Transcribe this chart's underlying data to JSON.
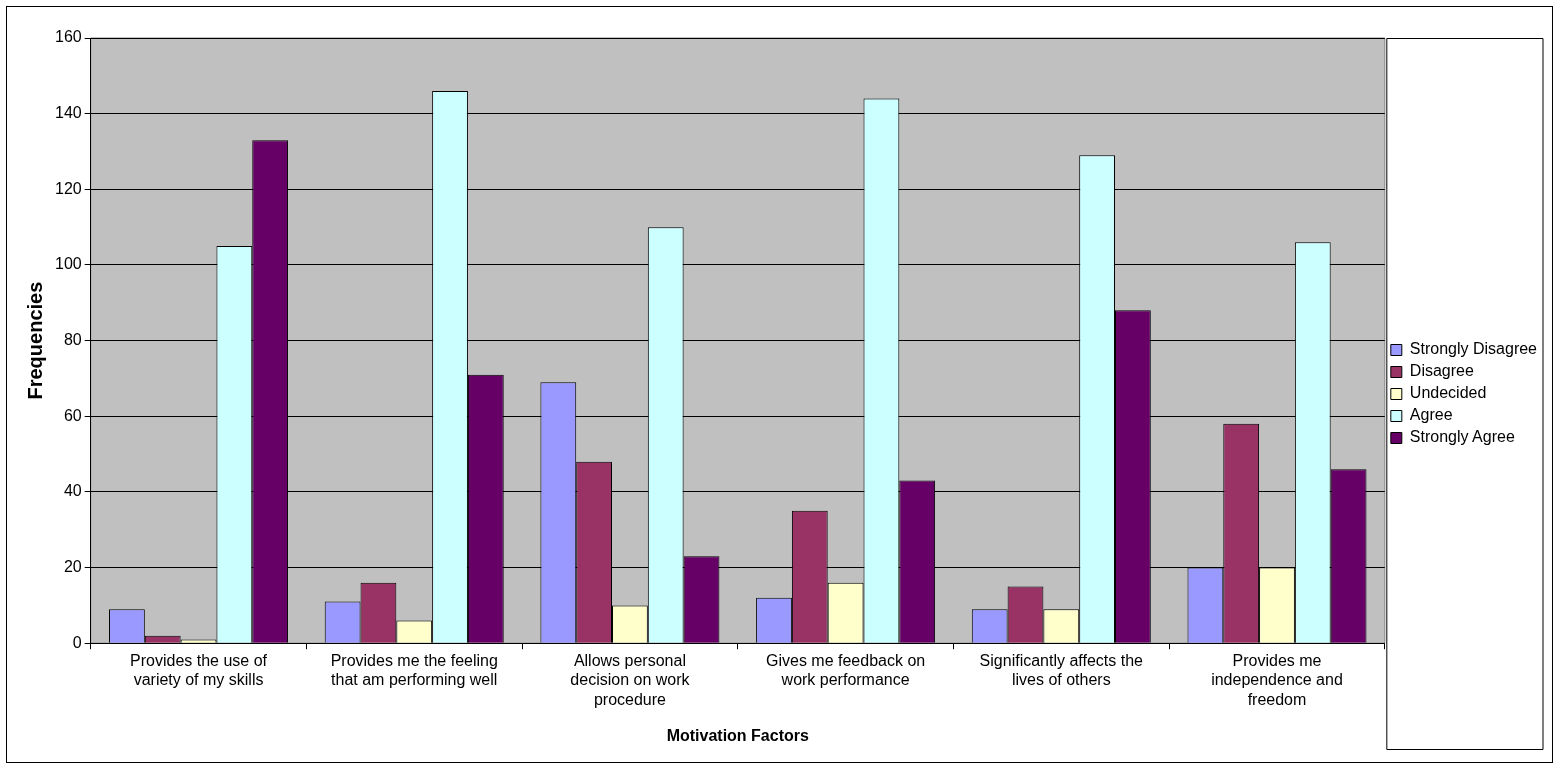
{
  "chart_data": {
    "type": "bar",
    "xlabel": "Motivation Factors",
    "ylabel": "Frequencies",
    "categories": [
      "Provides the use of variety of my skills",
      "Provides me the feeling that am performing well",
      "Allows personal decision on work procedure",
      "Gives me feedback on work performance",
      "Significantly affects the lives of others",
      "Provides me independence and freedom"
    ],
    "series": [
      {
        "name": "Strongly Disagree",
        "color": "#9999ff",
        "values": [
          9,
          11,
          69,
          12,
          9,
          20
        ]
      },
      {
        "name": "Disagree",
        "color": "#993366",
        "values": [
          2,
          16,
          48,
          35,
          15,
          58
        ]
      },
      {
        "name": "Undecided",
        "color": "#ffffcc",
        "values": [
          1,
          6,
          10,
          16,
          9,
          20
        ]
      },
      {
        "name": "Agree",
        "color": "#ccffff",
        "values": [
          105,
          146,
          110,
          144,
          129,
          106
        ]
      },
      {
        "name": "Strongly Agree",
        "color": "#660066",
        "values": [
          133,
          71,
          23,
          43,
          88,
          46
        ]
      }
    ],
    "ylim": [
      0,
      160
    ],
    "yticks": [
      0,
      20,
      40,
      60,
      80,
      100,
      120,
      140,
      160
    ],
    "grid": "y",
    "legend": "right"
  }
}
